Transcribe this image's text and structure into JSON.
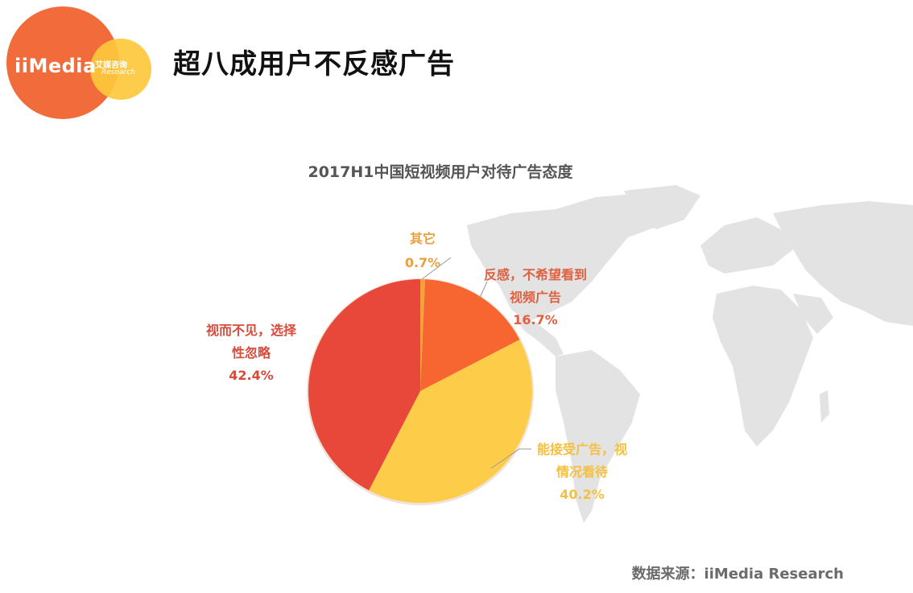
{
  "header": {
    "logo": {
      "brand": "iiMedia",
      "cn": "艾媒咨询",
      "en": "Research",
      "colors": {
        "primary": "#f26b3a",
        "secondary": "#fdc83c"
      }
    },
    "title": "超八成用户不反感广告"
  },
  "chart_data": {
    "type": "pie",
    "title": "2017H1中国短视频用户对待广告态度",
    "start_angle": "12 o'clock, clockwise",
    "slices": [
      {
        "label": "其它",
        "label_lines": [
          "其它"
        ],
        "value": 0.7,
        "display": "0.7%",
        "color": "#f5a03a",
        "label_color": "#e8a040"
      },
      {
        "label": "反感，不希望看到视频广告",
        "label_lines": [
          "反感，不希望看到",
          "视频广告"
        ],
        "value": 16.7,
        "display": "16.7%",
        "color": "#f76530",
        "label_color": "#e06040"
      },
      {
        "label": "能接受广告，视情况看待",
        "label_lines": [
          "能接受广告，视",
          "情况看待"
        ],
        "value": 40.2,
        "display": "40.2%",
        "color": "#fdcd4a",
        "label_color": "#f5c040"
      },
      {
        "label": "视而不见，选择性忽略",
        "label_lines": [
          "视而不见，选择",
          "性忽略"
        ],
        "value": 42.4,
        "display": "42.4%",
        "color": "#e8483a",
        "label_color": "#d84a3a"
      }
    ]
  },
  "footer": {
    "source": "数据来源：iiMedia Research"
  }
}
